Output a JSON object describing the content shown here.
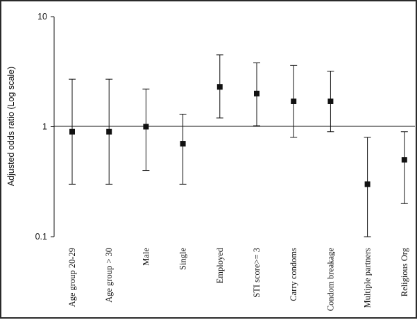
{
  "chart_data": {
    "type": "scatter",
    "ylabel": "Adjusted odds ratio (Log scale)",
    "ylim": [
      0.1,
      10
    ],
    "y_scale": "log",
    "y_ticks": [
      "0.1",
      "1",
      "10"
    ],
    "y_tick_values": [
      0.1,
      1,
      10
    ],
    "reference_line": 1,
    "categories": [
      "Age group 20-29",
      "Age group > 30",
      "Male",
      "Single",
      "Employed",
      "STI score>= 3",
      "Carry condoms",
      "Condom breakage",
      "Multiple partners",
      "Religious Org"
    ],
    "series": [
      {
        "values": [
          0.9,
          0.9,
          1.0,
          0.7,
          2.3,
          2.0,
          1.7,
          1.7,
          0.3,
          0.5
        ],
        "ci_lower": [
          0.3,
          0.3,
          0.4,
          0.3,
          1.2,
          1.02,
          0.8,
          0.9,
          0.1,
          0.2
        ],
        "ci_upper": [
          2.7,
          2.7,
          2.2,
          1.3,
          4.5,
          3.8,
          3.6,
          3.2,
          0.8,
          0.9
        ]
      }
    ],
    "grid": false,
    "legend": "none",
    "color": "#111111"
  }
}
